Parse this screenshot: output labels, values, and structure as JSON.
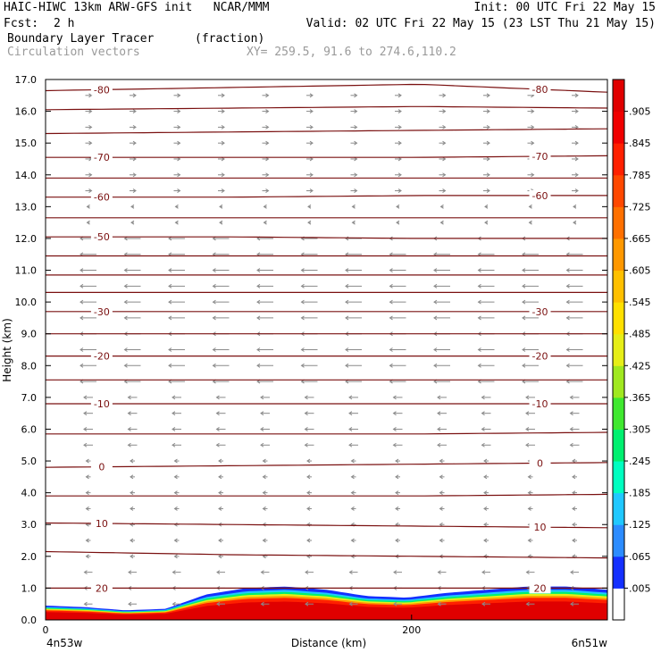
{
  "header": {
    "title": "HAIC-HIWC 13km ARW-GFS init   NCAR/MMM",
    "init": "Init: 00 UTC Fri 22 May 15",
    "fcst_label": "Fcst:",
    "fcst_value": "2 h",
    "valid": "Valid: 02 UTC Fri 22 May 15 (23 LST Thu 21 May 15)",
    "field_name": "Boundary Layer Tracer",
    "field_units": "(fraction)",
    "vectors_label": "Circulation vectors",
    "xy": "XY= 259.5, 91.6 to 274.6,110.2"
  },
  "chart_data": {
    "type": "heatmap",
    "xlabel": "Distance (km)",
    "ylabel": "Height (km)",
    "xlim": [
      0,
      307
    ],
    "ylim": [
      0,
      17
    ],
    "x_ticks": [
      0,
      200
    ],
    "x_tick_labels": [
      "0",
      "200"
    ],
    "x_end_labels": [
      "4n53w",
      "6n51w"
    ],
    "y_ticks": [
      0,
      1,
      2,
      3,
      4,
      5,
      6,
      7,
      8,
      9,
      10,
      11,
      12,
      13,
      14,
      15,
      16,
      17
    ],
    "y_tick_labels": [
      "0.0",
      "1.0",
      "2.0",
      "3.0",
      "4.0",
      "5.0",
      "6.0",
      "7.0",
      "8.0",
      "9.0",
      "10.0",
      "11.0",
      "12.0",
      "13.0",
      "14.0",
      "15.0",
      "16.0",
      "17.0"
    ],
    "colorbar": {
      "labels": [
        ".005",
        ".065",
        ".125",
        ".185",
        ".245",
        ".305",
        ".365",
        ".425",
        ".485",
        ".545",
        ".605",
        ".665",
        ".725",
        ".785",
        ".845",
        ".905"
      ],
      "colors": [
        "#ffffff",
        "#1430ff",
        "#2c8cff",
        "#20c8ff",
        "#00ffc0",
        "#00f070",
        "#40e830",
        "#a0e820",
        "#e6ee18",
        "#ffe000",
        "#ffc000",
        "#ff9800",
        "#ff7000",
        "#ff4800",
        "#ff2000",
        "#f00000",
        "#e00000"
      ]
    },
    "temperature_contours": [
      {
        "label": "-80",
        "heights": [
          16.65,
          16.75,
          16.85,
          16.6
        ]
      },
      {
        "label": "",
        "heights": [
          16.05,
          16.1,
          16.15,
          16.1
        ]
      },
      {
        "label": "",
        "heights": [
          15.3,
          15.35,
          15.4,
          15.45
        ]
      },
      {
        "label": "-70",
        "heights": [
          14.55,
          14.55,
          14.55,
          14.6
        ]
      },
      {
        "label": "",
        "heights": [
          13.9,
          13.9,
          13.9,
          13.9
        ]
      },
      {
        "label": "-60",
        "heights": [
          13.3,
          13.3,
          13.35,
          13.35
        ]
      },
      {
        "label": "",
        "heights": [
          12.65,
          12.65,
          12.65,
          12.65
        ]
      },
      {
        "label": "-50",
        "heights": [
          12.05,
          12.05,
          12.0,
          12.0
        ]
      },
      {
        "label": "",
        "heights": [
          11.45,
          11.45,
          11.45,
          11.45
        ]
      },
      {
        "label": "",
        "heights": [
          10.85,
          10.85,
          10.85,
          10.85
        ]
      },
      {
        "label": "",
        "heights": [
          10.3,
          10.3,
          10.3,
          10.3
        ]
      },
      {
        "label": "-30",
        "heights": [
          9.7,
          9.7,
          9.7,
          9.7
        ]
      },
      {
        "label": "",
        "heights": [
          9.0,
          9.0,
          9.0,
          9.0
        ]
      },
      {
        "label": "-20",
        "heights": [
          8.3,
          8.3,
          8.3,
          8.3
        ]
      },
      {
        "label": "",
        "heights": [
          7.55,
          7.55,
          7.55,
          7.55
        ]
      },
      {
        "label": "-10",
        "heights": [
          6.8,
          6.8,
          6.8,
          6.8
        ]
      },
      {
        "label": "",
        "heights": [
          5.85,
          5.85,
          5.85,
          5.9
        ]
      },
      {
        "label": "0",
        "heights": [
          4.8,
          4.85,
          4.9,
          4.95
        ]
      },
      {
        "label": "",
        "heights": [
          3.9,
          3.9,
          3.9,
          3.95
        ]
      },
      {
        "label": "10",
        "heights": [
          3.05,
          3.0,
          2.95,
          2.9
        ]
      },
      {
        "label": "",
        "heights": [
          2.15,
          2.05,
          2.0,
          1.95
        ]
      },
      {
        "label": "20",
        "heights": [
          1.0,
          1.0,
          1.0,
          1.0
        ]
      }
    ],
    "tracer_top_km": [
      0.45,
      0.4,
      0.3,
      0.35,
      0.8,
      1.0,
      1.05,
      0.95,
      0.75,
      0.7,
      0.85,
      0.95,
      1.05,
      1.05,
      0.95
    ],
    "vector_rows_km": [
      0.5,
      1.0,
      1.5,
      2.0,
      2.5,
      3.0,
      3.5,
      4.0,
      4.5,
      5.0,
      5.5,
      6.0,
      6.5,
      7.0,
      7.5,
      8.0,
      8.5,
      9.0,
      9.5,
      10.0,
      10.5,
      11.0,
      11.5,
      12.0,
      12.5,
      13.0,
      13.5,
      14.0,
      14.5,
      15.0,
      15.5,
      16.0,
      16.5
    ]
  }
}
